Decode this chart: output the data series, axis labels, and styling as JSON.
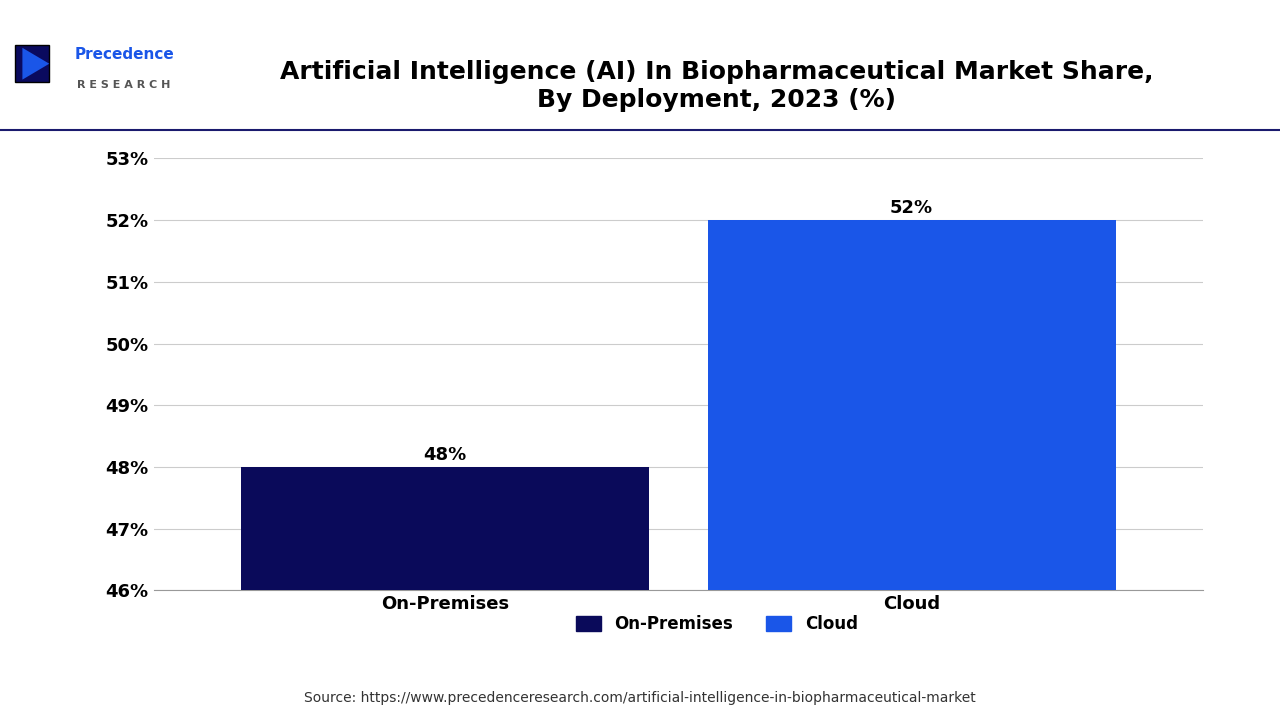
{
  "title": "Artificial Intelligence (AI) In Biopharmaceutical Market Share,\nBy Deployment, 2023 (%)",
  "categories": [
    "On-Premises",
    "Cloud"
  ],
  "values": [
    48,
    52
  ],
  "bar_colors": [
    "#0a0a5a",
    "#1a56e8"
  ],
  "ylim": [
    46,
    53
  ],
  "yticks": [
    46,
    47,
    48,
    49,
    50,
    51,
    52,
    53
  ],
  "ytick_labels": [
    "46%",
    "47%",
    "48%",
    "49%",
    "50%",
    "51%",
    "52%",
    "53%"
  ],
  "bar_labels": [
    "48%",
    "52%"
  ],
  "legend_labels": [
    "On-Premises",
    "Cloud"
  ],
  "legend_colors": [
    "#0a0a5a",
    "#1a56e8"
  ],
  "source_text": "Source: https://www.precedenceresearch.com/artificial-intelligence-in-biopharmaceutical-market",
  "background_color": "#ffffff",
  "title_fontsize": 18,
  "tick_fontsize": 13,
  "bar_label_fontsize": 13,
  "legend_fontsize": 12,
  "source_fontsize": 10,
  "bar_width": 0.35
}
